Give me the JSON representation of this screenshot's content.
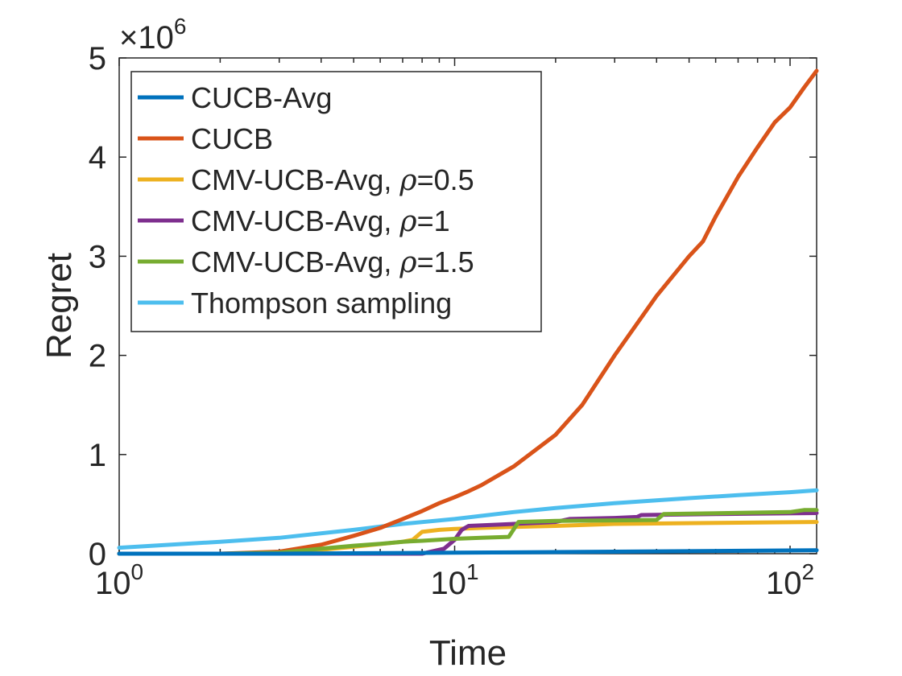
{
  "chart_data": {
    "type": "line",
    "title": "",
    "xlabel": "Time",
    "ylabel": "Regret",
    "x_scale": "log",
    "xlim": [
      1,
      120
    ],
    "ylim": [
      0,
      5
    ],
    "y_multiplier_label": "×10",
    "y_multiplier_exponent": "6",
    "x_ticks": [
      {
        "value": 1,
        "base": "10",
        "exp": "0"
      },
      {
        "value": 10,
        "base": "10",
        "exp": "1"
      },
      {
        "value": 100,
        "base": "10",
        "exp": "2"
      }
    ],
    "y_ticks": [
      {
        "value": 0,
        "label": "0"
      },
      {
        "value": 1,
        "label": "1"
      },
      {
        "value": 2,
        "label": "2"
      },
      {
        "value": 3,
        "label": "3"
      },
      {
        "value": 4,
        "label": "4"
      },
      {
        "value": 5,
        "label": "5"
      }
    ],
    "legend_position": "top-left",
    "series": [
      {
        "name": "CUCB-Avg",
        "color": "#0072BD",
        "points": [
          [
            1,
            0
          ],
          [
            3,
            0
          ],
          [
            10,
            0.01
          ],
          [
            30,
            0.02
          ],
          [
            120,
            0.035
          ]
        ]
      },
      {
        "name": "CUCB",
        "color": "#D95319",
        "points": [
          [
            1,
            0
          ],
          [
            2,
            0
          ],
          [
            3,
            0.02
          ],
          [
            4,
            0.09
          ],
          [
            5,
            0.18
          ],
          [
            6,
            0.26
          ],
          [
            7,
            0.35
          ],
          [
            8,
            0.43
          ],
          [
            9,
            0.51
          ],
          [
            10,
            0.57
          ],
          [
            11,
            0.63
          ],
          [
            12,
            0.69
          ],
          [
            15,
            0.88
          ],
          [
            20,
            1.2
          ],
          [
            24,
            1.5
          ],
          [
            30,
            2.0
          ],
          [
            40,
            2.6
          ],
          [
            50,
            3.0
          ],
          [
            55,
            3.15
          ],
          [
            60,
            3.4
          ],
          [
            70,
            3.8
          ],
          [
            80,
            4.1
          ],
          [
            90,
            4.35
          ],
          [
            100,
            4.5
          ],
          [
            110,
            4.7
          ],
          [
            120,
            4.87
          ]
        ]
      },
      {
        "name": "CMV-UCB-Avg, ρ=0.5",
        "rho": "0.5",
        "color": "#EDB120",
        "points": [
          [
            1,
            0
          ],
          [
            3,
            0
          ],
          [
            5,
            0.07
          ],
          [
            7,
            0.12
          ],
          [
            7.5,
            0.14
          ],
          [
            8,
            0.22
          ],
          [
            9,
            0.24
          ],
          [
            10,
            0.25
          ],
          [
            12,
            0.26
          ],
          [
            15,
            0.27
          ],
          [
            20,
            0.28
          ],
          [
            30,
            0.3
          ],
          [
            60,
            0.31
          ],
          [
            120,
            0.32
          ]
        ]
      },
      {
        "name": "CMV-UCB-Avg, ρ=1",
        "rho": "1",
        "color": "#7E2F8E",
        "points": [
          [
            1,
            0
          ],
          [
            8,
            0
          ],
          [
            9.3,
            0.05
          ],
          [
            10,
            0.14
          ],
          [
            10.5,
            0.24
          ],
          [
            11,
            0.28
          ],
          [
            15,
            0.3
          ],
          [
            20,
            0.32
          ],
          [
            22,
            0.35
          ],
          [
            30,
            0.36
          ],
          [
            35,
            0.37
          ],
          [
            36,
            0.39
          ],
          [
            60,
            0.4
          ],
          [
            120,
            0.41
          ]
        ]
      },
      {
        "name": "CMV-UCB-Avg, ρ=1.5",
        "rho": "1.5",
        "color": "#77AC30",
        "points": [
          [
            1,
            0
          ],
          [
            2,
            0
          ],
          [
            3,
            0.01
          ],
          [
            4,
            0.05
          ],
          [
            5,
            0.08
          ],
          [
            6,
            0.1
          ],
          [
            7,
            0.12
          ],
          [
            8,
            0.13
          ],
          [
            10,
            0.15
          ],
          [
            12,
            0.16
          ],
          [
            14.5,
            0.17
          ],
          [
            15.5,
            0.32
          ],
          [
            20,
            0.33
          ],
          [
            40,
            0.34
          ],
          [
            42,
            0.4
          ],
          [
            100,
            0.42
          ],
          [
            110,
            0.44
          ],
          [
            120,
            0.44
          ]
        ]
      },
      {
        "name": "Thompson sampling",
        "color": "#4DBEEE",
        "points": [
          [
            1,
            0.06
          ],
          [
            2,
            0.12
          ],
          [
            3,
            0.16
          ],
          [
            5,
            0.24
          ],
          [
            7,
            0.3
          ],
          [
            10,
            0.35
          ],
          [
            15,
            0.42
          ],
          [
            20,
            0.46
          ],
          [
            30,
            0.51
          ],
          [
            50,
            0.56
          ],
          [
            70,
            0.59
          ],
          [
            100,
            0.62
          ],
          [
            120,
            0.64
          ]
        ]
      }
    ]
  }
}
